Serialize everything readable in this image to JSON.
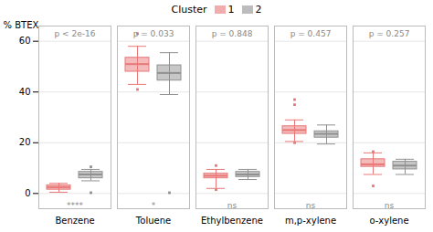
{
  "chart_data": {
    "type": "box",
    "title": "Cluster",
    "ylabel": "% BTEX",
    "categories": [
      "Benzene",
      "Toluene",
      "Ethylbenzene",
      "m,p-xylene",
      "o-xylene"
    ],
    "ylim": [
      -6,
      66
    ],
    "yticks": [
      0,
      20,
      40,
      60
    ],
    "grid": true,
    "series": [
      {
        "name": "1",
        "color": "#e87878",
        "values": [
          {
            "q1": 1.5,
            "median": 2.5,
            "q3": 3.2,
            "whislo": 0.5,
            "whishi": 4.0,
            "fliers": []
          },
          {
            "q1": 48.0,
            "median": 51.0,
            "q3": 53.5,
            "whislo": 43.0,
            "whishi": 58.0,
            "fliers": [
              41.0,
              63.0
            ]
          },
          {
            "q1": 6.0,
            "median": 7.0,
            "q3": 7.8,
            "whislo": 2.0,
            "whishi": 9.5,
            "fliers": [
              11.0,
              1.5
            ]
          },
          {
            "q1": 23.5,
            "median": 25.0,
            "q3": 26.5,
            "whislo": 20.5,
            "whishi": 29.0,
            "fliers": [
              20.0,
              35.0,
              37.0
            ]
          },
          {
            "q1": 10.5,
            "median": 11.5,
            "q3": 13.5,
            "whislo": 7.5,
            "whishi": 16.0,
            "fliers": [
              3.0,
              16.5
            ]
          }
        ]
      },
      {
        "name": "2",
        "color": "#909090",
        "values": [
          {
            "q1": 6.0,
            "median": 7.5,
            "q3": 8.5,
            "whislo": 5.0,
            "whishi": 9.5,
            "fliers": [
              0.3,
              10.5
            ]
          },
          {
            "q1": 44.5,
            "median": 47.5,
            "q3": 50.5,
            "whislo": 39.0,
            "whishi": 55.5,
            "fliers": [
              0.3
            ]
          },
          {
            "q1": 6.5,
            "median": 7.5,
            "q3": 8.5,
            "whislo": 5.5,
            "whishi": 9.5,
            "fliers": []
          },
          {
            "q1": 22.0,
            "median": 23.5,
            "q3": 24.5,
            "whislo": 19.5,
            "whishi": 27.0,
            "fliers": []
          },
          {
            "q1": 9.5,
            "median": 11.0,
            "q3": 12.5,
            "whislo": 7.5,
            "whishi": 13.5,
            "fliers": []
          }
        ]
      }
    ],
    "annotations": [
      {
        "category": "Benzene",
        "text": "p < 2e-16",
        "y": 64
      },
      {
        "category": "Toluene",
        "text": "p = 0.033",
        "y": 64
      },
      {
        "category": "Ethylbenzene",
        "text": "p = 0.848",
        "y": 64
      },
      {
        "category": "m,p-xylene",
        "text": "p = 0.457",
        "y": 64
      },
      {
        "category": "o-xylene",
        "text": "p = 0.257",
        "y": 64
      },
      {
        "category": "Benzene",
        "text": "****",
        "y": -3.5
      },
      {
        "category": "Toluene",
        "text": "*",
        "y": -3.5
      },
      {
        "category": "Ethylbenzene",
        "text": "ns",
        "y": -3.5
      },
      {
        "category": "m,p-xylene",
        "text": "ns",
        "y": -3.5
      },
      {
        "category": "o-xylene",
        "text": "ns",
        "y": -3.5
      }
    ]
  }
}
